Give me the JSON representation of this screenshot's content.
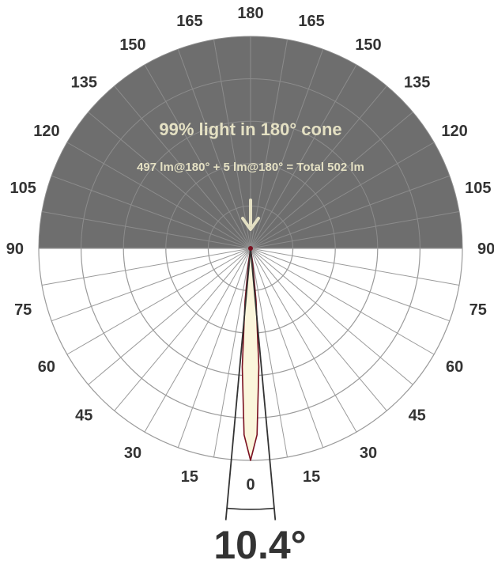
{
  "chart_data": {
    "type": "polar",
    "headline": "99% light in 180° cone",
    "lumen_summary": "497 lm@180° + 5 lm@180° = Total 502 lm",
    "beam_angle_label": "10.4°",
    "beam_angle_deg": 10.4,
    "angle_labels_left": [
      {
        "deg": 0,
        "text": "0"
      },
      {
        "deg": 15,
        "text": "15"
      },
      {
        "deg": 30,
        "text": "30"
      },
      {
        "deg": 45,
        "text": "45"
      },
      {
        "deg": 60,
        "text": "60"
      },
      {
        "deg": 75,
        "text": "75"
      },
      {
        "deg": 90,
        "text": "90"
      },
      {
        "deg": 105,
        "text": "105"
      },
      {
        "deg": 120,
        "text": "120"
      },
      {
        "deg": 135,
        "text": "135"
      },
      {
        "deg": 150,
        "text": "150"
      },
      {
        "deg": 165,
        "text": "165"
      },
      {
        "deg": 180,
        "text": "180"
      }
    ],
    "angle_labels_right": [
      {
        "deg": 15,
        "text": "15"
      },
      {
        "deg": 30,
        "text": "30"
      },
      {
        "deg": 45,
        "text": "45"
      },
      {
        "deg": 60,
        "text": "60"
      },
      {
        "deg": 75,
        "text": "75"
      },
      {
        "deg": 90,
        "text": "90"
      },
      {
        "deg": 105,
        "text": "105"
      },
      {
        "deg": 120,
        "text": "120"
      },
      {
        "deg": 135,
        "text": "135"
      },
      {
        "deg": 150,
        "text": "150"
      },
      {
        "deg": 165,
        "text": "165"
      }
    ],
    "spoke_step_deg": 10,
    "ring_fractions": [
      0.2,
      0.4,
      0.6,
      0.8,
      1.0
    ],
    "distribution": {
      "angle_deg": [
        0,
        2,
        4,
        6,
        8,
        10
      ],
      "relative_intensity": [
        1.0,
        0.88,
        0.56,
        0.25,
        0.07,
        0.0
      ]
    },
    "colors": {
      "upper_hemisphere": "#6e6e6e",
      "grid_lower": "#9a9a9a",
      "grid_upper": "#8c8c8c",
      "beam_fill": "#fbf6dc",
      "beam_stroke": "#7a1020",
      "headline_text": "#e4e0c3",
      "arrow": "#e4e0c3",
      "label_text": "#333333"
    }
  }
}
